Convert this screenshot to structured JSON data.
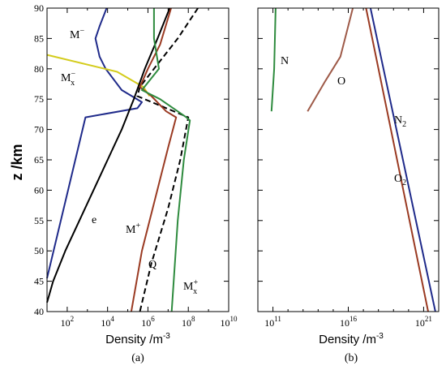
{
  "chart_data": [
    {
      "panel": "a",
      "type": "line",
      "caption": "(a)",
      "xlabel": "Density  /m",
      "xlabel_exp": "-3",
      "ylabel": "z  /km",
      "xscale": "log",
      "xlim": [
        10,
        10000000000
      ],
      "ylim": [
        40,
        90
      ],
      "x_tick_labels": [
        {
          "base": "10",
          "exp": "2",
          "value": 100
        },
        {
          "base": "10",
          "exp": "4",
          "value": 10000
        },
        {
          "base": "10",
          "exp": "6",
          "value": 1000000
        },
        {
          "base": "10",
          "exp": "8",
          "value": 100000000
        },
        {
          "base": "10",
          "exp": "10",
          "value": 10000000000
        }
      ],
      "y_ticks": [
        40,
        45,
        50,
        55,
        60,
        65,
        70,
        75,
        80,
        85,
        90
      ],
      "series": [
        {
          "name": "M⁻",
          "color": "#1f2a8a",
          "dash": false,
          "points": [
            [
              9000,
              90
            ],
            [
              4000,
              87
            ],
            [
              2500,
              85
            ],
            [
              4000,
              82
            ],
            [
              8000,
              80
            ],
            [
              50000,
              76.5
            ],
            [
              500000,
              74.5
            ],
            [
              300000,
              73.5
            ],
            [
              800,
              72
            ],
            [
              10,
              45.5
            ]
          ]
        },
        {
          "name": "Mₓ⁻",
          "color": "#d4cc1c",
          "dash": false,
          "points": [
            [
              10,
              82.3
            ],
            [
              30000,
              79.5
            ],
            [
              600000,
              77
            ],
            [
              1200000,
              75.5
            ]
          ]
        },
        {
          "name": "e",
          "color": "#000000",
          "dash": false,
          "points": [
            [
              12000000,
              90
            ],
            [
              3000000,
              85
            ],
            [
              700000,
              80
            ],
            [
              200000,
              75
            ],
            [
              50000,
              70
            ],
            [
              10000,
              65
            ],
            [
              2000,
              60
            ],
            [
              400,
              55
            ],
            [
              80,
              50
            ],
            [
              20,
              45
            ],
            [
              10,
              41.5
            ]
          ]
        },
        {
          "name": "Q",
          "color": "#000000",
          "dash": true,
          "points": [
            [
              300000000,
              90
            ],
            [
              30000000,
              85
            ],
            [
              2000000,
              80
            ],
            [
              400000,
              77
            ],
            [
              300000,
              75.5
            ],
            [
              100000000,
              72
            ],
            [
              40000000,
              65
            ],
            [
              10000000,
              57
            ],
            [
              1500000,
              48
            ],
            [
              400000,
              40
            ]
          ]
        },
        {
          "name": "M⁺",
          "color": "#9a3a22",
          "dash": false,
          "points": [
            [
              14000000,
              90
            ],
            [
              4000000,
              84
            ],
            [
              1000000,
              80
            ],
            [
              400000,
              77
            ],
            [
              1500000,
              75.5
            ],
            [
              8000000,
              73
            ],
            [
              25000000,
              72
            ],
            [
              10000000,
              67
            ],
            [
              500000,
              50
            ],
            [
              150000,
              40
            ]
          ]
        },
        {
          "name": "Mₓ⁺",
          "color": "#2e8b3e",
          "dash": false,
          "points": [
            [
              2000000,
              90
            ],
            [
              2000000,
              85
            ],
            [
              3500000,
              80
            ],
            [
              500000,
              76.5
            ],
            [
              4000000,
              75
            ],
            [
              80000000,
              72
            ],
            [
              120000000,
              71.5
            ],
            [
              60000000,
              65
            ],
            [
              30000000,
              55
            ],
            [
              15000000,
              40
            ]
          ]
        }
      ],
      "labels": [
        {
          "text": "M",
          "sup": "−",
          "sub": "",
          "series": "M⁻"
        },
        {
          "text": "M",
          "sup": "−",
          "sub": "x",
          "series": "Mₓ⁻"
        },
        {
          "text": "e",
          "sup": "",
          "sub": "",
          "series": "e"
        },
        {
          "text": "M",
          "sup": "+",
          "sub": "",
          "series": "M⁺"
        },
        {
          "text": "Q",
          "sup": "",
          "sub": "",
          "series": "Q"
        },
        {
          "text": "M",
          "sup": "+",
          "sub": "x",
          "series": "Mₓ⁺"
        }
      ]
    },
    {
      "panel": "b",
      "type": "line",
      "caption": "(b)",
      "xlabel": "Density  /m",
      "xlabel_exp": "-3",
      "xscale": "log",
      "xlim": [
        10000000000,
        10000000000000000000000
      ],
      "ylim": [
        40,
        90
      ],
      "x_tick_labels": [
        {
          "base": "10",
          "exp": "11",
          "value": 100000000000
        },
        {
          "base": "10",
          "exp": "16",
          "value": 10000000000000000
        },
        {
          "base": "10",
          "exp": "21",
          "value": 1000000000000000000000
        }
      ],
      "series": [
        {
          "name": "N",
          "color": "#2e8b3e",
          "dash": false,
          "points": [
            [
              150000000000,
              90
            ],
            [
              120000000000,
              80
            ],
            [
              80000000000,
              73
            ]
          ]
        },
        {
          "name": "O",
          "color": "#9e5a48",
          "dash": false,
          "points": [
            [
              20000000000000000,
              90
            ],
            [
              3000000000000000,
              82
            ],
            [
              300000000000000,
              78
            ],
            [
              20000000000000,
              73
            ]
          ]
        },
        {
          "name": "N₂",
          "color": "#1f2a8a",
          "dash": false,
          "points": [
            [
              300000000000000000,
              90
            ],
            [
              6000000000000000000000,
              40
            ]
          ]
        },
        {
          "name": "O₂",
          "color": "#9a3a22",
          "dash": false,
          "points": [
            [
              150000000000000000,
              90
            ],
            [
              2000000000000000000000,
              40
            ]
          ]
        }
      ],
      "labels": [
        {
          "text": "N",
          "sup": "",
          "sub": "",
          "series": "N"
        },
        {
          "text": "O",
          "sup": "",
          "sub": "",
          "series": "O"
        },
        {
          "text": "N",
          "sup": "",
          "sub": "2",
          "series": "N₂"
        },
        {
          "text": "O",
          "sup": "",
          "sub": "2",
          "series": "O₂"
        }
      ]
    }
  ]
}
